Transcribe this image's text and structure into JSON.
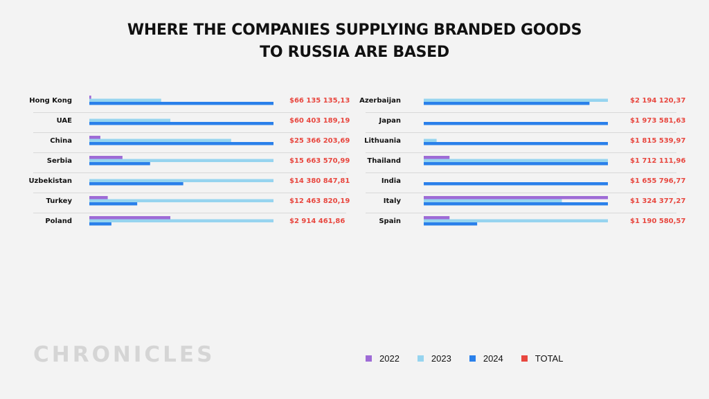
{
  "title": {
    "line1": "WHERE THE COMPANIES SUPPLYING BRANDED GOODS",
    "line2": "TO RUSSIA ARE BASED"
  },
  "logo": "CHRONICLES",
  "colors": {
    "2022": "#9e6bd6",
    "2023": "#96d4ef",
    "2024": "#2a80ea",
    "total": "#e8473f"
  },
  "legend": [
    {
      "label": "2022",
      "color": "#9e6bd6"
    },
    {
      "label": "2023",
      "color": "#96d4ef"
    },
    {
      "label": "2024",
      "color": "#2a80ea"
    },
    {
      "label": "TOTAL",
      "color": "#e8473f"
    }
  ],
  "chart_data": [
    {
      "type": "bar",
      "orientation": "horizontal",
      "value_scale": "fraction of the largest year value in each row",
      "categories": [
        "Hong Kong",
        "UAE",
        "China",
        "Serbia",
        "Uzbekistan",
        "Turkey",
        "Poland"
      ],
      "series": [
        {
          "name": "2022",
          "values": [
            0.01,
            0.0,
            0.06,
            0.18,
            0.0,
            0.1,
            0.44
          ]
        },
        {
          "name": "2023",
          "values": [
            0.39,
            0.44,
            0.77,
            1.0,
            1.0,
            1.0,
            1.0
          ]
        },
        {
          "name": "2024",
          "values": [
            1.0,
            1.0,
            1.0,
            0.33,
            0.51,
            0.26,
            0.12
          ]
        }
      ],
      "totals": [
        "$66 135 135,13",
        "$60 403 189,19",
        "$25 366 203,69",
        "$15 663 570,99",
        "$14 380 847,81",
        "$12 463 820,19",
        "$2 914 461,86"
      ]
    },
    {
      "type": "bar",
      "orientation": "horizontal",
      "value_scale": "fraction of the largest year value in each row",
      "categories": [
        "Azerbaijan",
        "Japan",
        "Lithuania",
        "Thailand",
        "India",
        "Italy",
        "Spain"
      ],
      "series": [
        {
          "name": "2022",
          "values": [
            0.0,
            0.0,
            0.0,
            0.14,
            0.0,
            1.0,
            0.14
          ]
        },
        {
          "name": "2023",
          "values": [
            1.0,
            0.0,
            0.07,
            1.0,
            0.0,
            0.75,
            1.0
          ]
        },
        {
          "name": "2024",
          "values": [
            0.9,
            1.0,
            1.0,
            1.0,
            1.0,
            1.0,
            0.29
          ]
        }
      ],
      "totals": [
        "$2 194 120,37",
        "$1 973 581,63",
        "$1 815 539,97",
        "$1 712 111,96",
        "$1 655 796,77",
        "$1 324 377,27",
        "$1 190 580,57"
      ]
    }
  ]
}
